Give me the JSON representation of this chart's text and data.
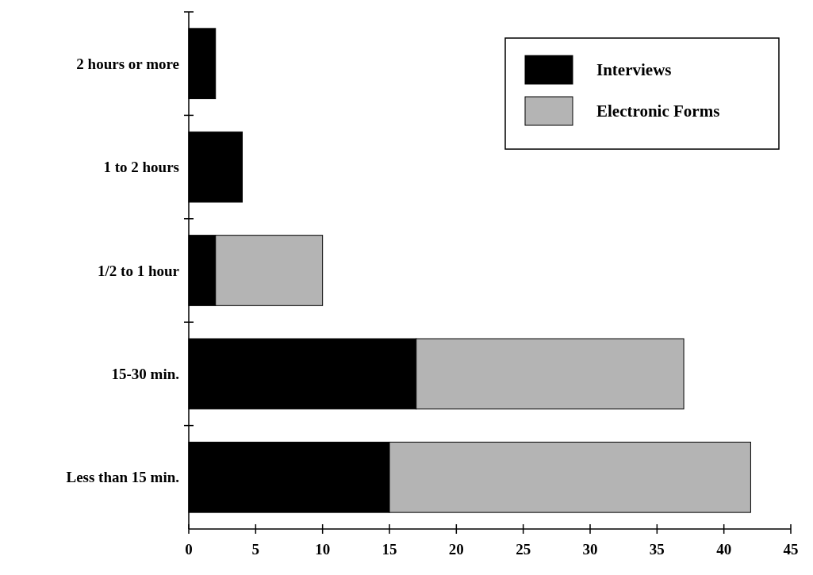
{
  "chart_data": {
    "type": "bar",
    "orientation": "horizontal",
    "stacked": true,
    "categories": [
      "2 hours or more",
      "1 to 2 hours",
      "1/2 to 1 hour",
      "15-30 min.",
      "Less than 15 min."
    ],
    "series": [
      {
        "name": "Interviews",
        "color": "#000000",
        "values": [
          2,
          4,
          2,
          17,
          15
        ]
      },
      {
        "name": "Electronic Forms",
        "color": "#b4b4b4",
        "values": [
          0,
          0,
          8,
          20,
          27
        ]
      }
    ],
    "xlim": [
      0,
      45
    ],
    "xticks": [
      0,
      5,
      10,
      15,
      20,
      25,
      30,
      35,
      40,
      45
    ],
    "grid": false,
    "legend": "top right"
  }
}
